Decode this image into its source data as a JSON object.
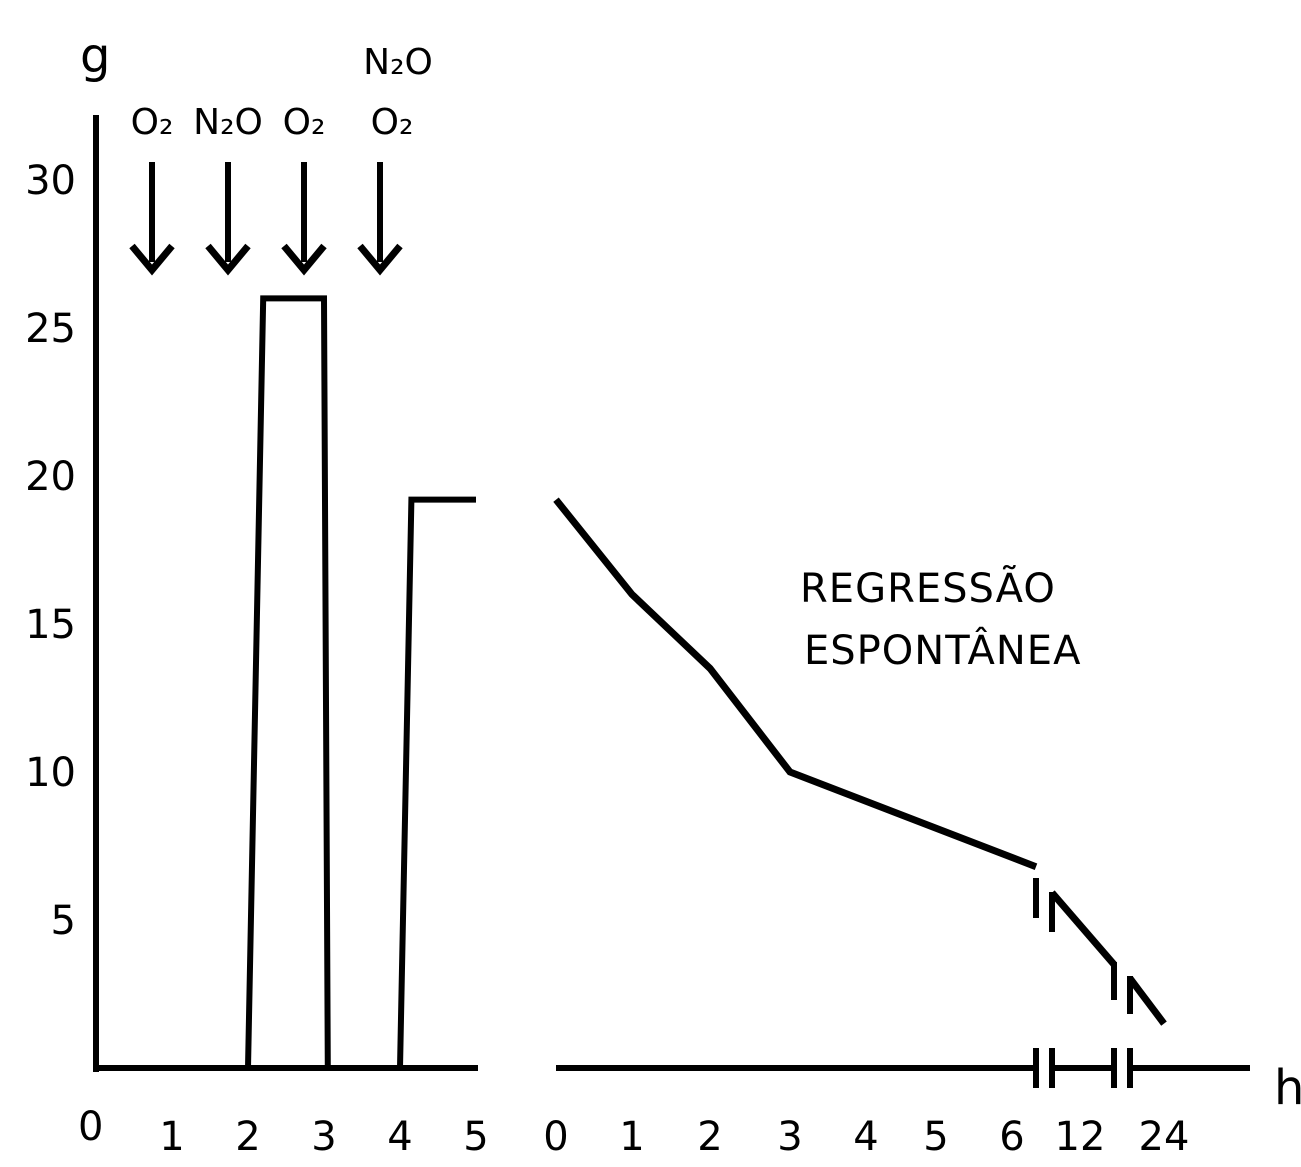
{
  "chart_data": {
    "type": "line",
    "ylabel": "g",
    "xlabel": "h",
    "ylim": [
      0,
      30
    ],
    "yticks": [
      "5",
      "10",
      "15",
      "20",
      "25",
      "30"
    ],
    "origin_label": "0",
    "panels": [
      {
        "name": "",
        "xticks": [
          "1",
          "2",
          "3",
          "4",
          "5"
        ],
        "xlim": [
          0,
          5
        ],
        "series": [
          {
            "name": "",
            "points": [
              [
                0,
                0
              ],
              [
                2,
                0
              ],
              [
                2.2,
                26
              ],
              [
                3,
                26
              ],
              [
                3.05,
                0
              ],
              [
                4,
                0
              ],
              [
                4.15,
                19.2
              ],
              [
                5,
                19.2
              ]
            ]
          }
        ],
        "annotations": [
          {
            "x": 1,
            "label": "O₂"
          },
          {
            "x": 2,
            "label": "N₂O"
          },
          {
            "x": 3,
            "label": "O₂"
          },
          {
            "x": 4,
            "label": "N₂O O₂"
          }
        ]
      },
      {
        "name": "",
        "xticks": [
          "0",
          "1",
          "2",
          "3",
          "4",
          "5",
          "6",
          "12",
          "24"
        ],
        "series": [
          {
            "name": "",
            "points": [
              [
                "0",
                19.2
              ],
              [
                "1",
                16
              ],
              [
                "2",
                13.5
              ],
              [
                "3",
                10
              ],
              [
                "6",
                6.8
              ],
              [
                "12",
                3.5
              ],
              [
                "24",
                1.5
              ]
            ]
          }
        ],
        "axis_breaks": [
          "6-12",
          "12-24"
        ],
        "annotation": [
          "REGRESSÃO",
          "ESPONTÂNEA"
        ]
      }
    ]
  }
}
